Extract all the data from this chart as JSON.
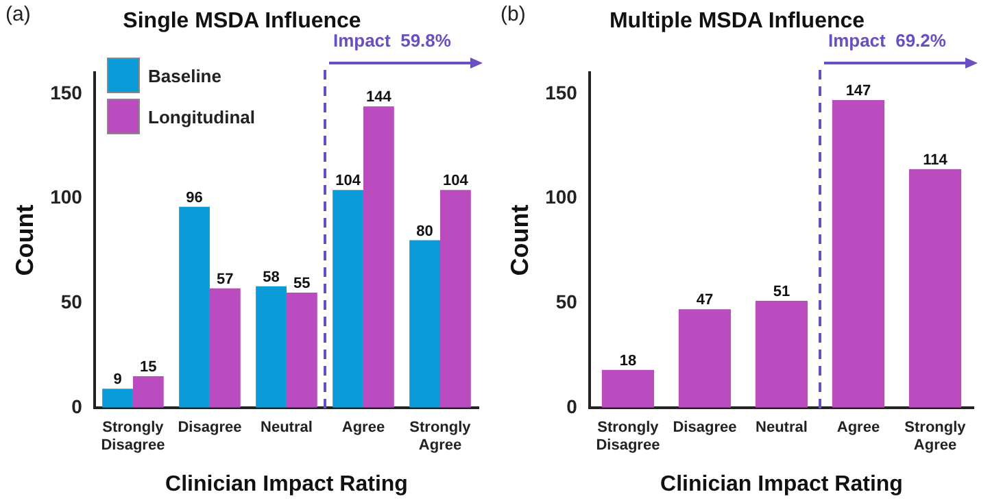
{
  "chart_data": [
    {
      "type": "bar",
      "title": "Single MSDA Influence",
      "xlabel": "Clinician Impact Rating",
      "ylabel": "Count",
      "categories": [
        "Strongly Disagree",
        "Disagree",
        "Neutral",
        "Agree",
        "Strongly Agree"
      ],
      "series": [
        {
          "name": "Baseline",
          "color": "#0a9bd9",
          "values": [
            9,
            96,
            58,
            104,
            80
          ]
        },
        {
          "name": "Longitudinal",
          "color": "#bb4cc0",
          "values": [
            15,
            57,
            55,
            144,
            104
          ]
        }
      ],
      "ylim": [
        0,
        160
      ],
      "yticks": [
        0,
        50,
        100,
        150
      ],
      "grid": false,
      "legend": "top left",
      "data_labels": true,
      "ref_lines": [
        {
          "axis": "x",
          "value": "Agree",
          "label": "Impact  59.8%",
          "color": "#6a4fc0",
          "line_style": "dashed"
        }
      ],
      "annotations": [
        "(a)"
      ]
    },
    {
      "type": "bar",
      "title": "Multiple MSDA Influence",
      "xlabel": "Clinician Impact Rating",
      "ylabel": "Count",
      "categories": [
        "Strongly Disagree",
        "Disagree",
        "Neutral",
        "Agree",
        "Strongly Agree"
      ],
      "series": [
        {
          "color": "#bb4cc0",
          "values": [
            18,
            47,
            51,
            147,
            114
          ]
        }
      ],
      "ylim": [
        0,
        160
      ],
      "yticks": [
        0,
        50,
        100,
        150
      ],
      "grid": false,
      "data_labels": true,
      "ref_lines": [
        {
          "axis": "x",
          "value": "Agree",
          "label": "Impact  69.2%",
          "color": "#6a4fc0",
          "line_style": "dashed"
        }
      ],
      "annotations": [
        "(b)"
      ]
    }
  ]
}
